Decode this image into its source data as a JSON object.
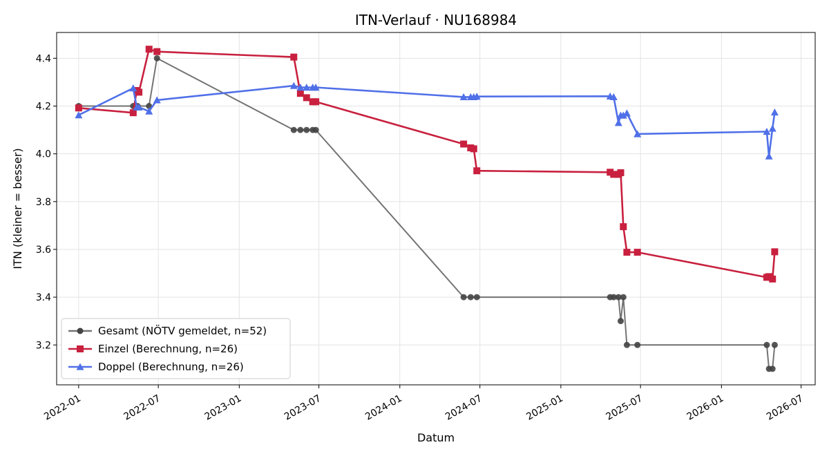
{
  "chart_data": {
    "type": "line",
    "title": "ITN-Verlauf · NU168984",
    "xlabel": "Datum",
    "ylabel": "ITN  (kleiner = besser)",
    "xlim": [
      "2021-11-12",
      "2026-08-02"
    ],
    "ylim": [
      3.033,
      4.508
    ],
    "grid": true,
    "legend_position": "lower-left",
    "x_ticks": [
      "2022-01",
      "2022-07",
      "2023-01",
      "2023-07",
      "2024-01",
      "2024-07",
      "2025-01",
      "2025-07",
      "2026-01",
      "2026-07"
    ],
    "y_ticks": [
      3.2,
      3.4,
      3.6,
      3.8,
      4.0,
      4.2,
      4.4
    ],
    "series": [
      {
        "name": "Gesamt (NÖTV gemeldet, n=52)",
        "color": "#444444",
        "marker": "circle",
        "points": [
          [
            "2022-01-01",
            4.2
          ],
          [
            "2022-05-05",
            4.2
          ],
          [
            "2022-05-15",
            4.2
          ],
          [
            "2022-06-10",
            4.2
          ],
          [
            "2022-06-28",
            4.4
          ],
          [
            "2023-05-05",
            4.1
          ],
          [
            "2023-05-20",
            4.1
          ],
          [
            "2023-06-03",
            4.1
          ],
          [
            "2023-06-17",
            4.1
          ],
          [
            "2023-06-24",
            4.1
          ],
          [
            "2024-05-25",
            3.4
          ],
          [
            "2024-06-10",
            3.4
          ],
          [
            "2024-06-24",
            3.4
          ],
          [
            "2025-04-23",
            3.4
          ],
          [
            "2025-05-01",
            3.4
          ],
          [
            "2025-05-12",
            3.4
          ],
          [
            "2025-05-17",
            3.3
          ],
          [
            "2025-05-23",
            3.4
          ],
          [
            "2025-05-31",
            3.2
          ],
          [
            "2025-06-24",
            3.2
          ],
          [
            "2026-04-14",
            3.2
          ],
          [
            "2026-04-19",
            3.1
          ],
          [
            "2026-04-27",
            3.1
          ],
          [
            "2026-05-02",
            3.2
          ]
        ]
      },
      {
        "name": "Einzel (Berechnung, n=26)",
        "color": "#c8203e",
        "marker": "square",
        "points": [
          [
            "2022-01-01",
            4.192
          ],
          [
            "2022-05-05",
            4.172
          ],
          [
            "2022-05-13",
            4.265
          ],
          [
            "2022-05-18",
            4.258
          ],
          [
            "2022-06-10",
            4.438
          ],
          [
            "2022-06-28",
            4.428
          ],
          [
            "2023-05-05",
            4.405
          ],
          [
            "2023-05-20",
            4.253
          ],
          [
            "2023-06-03",
            4.235
          ],
          [
            "2023-06-17",
            4.218
          ],
          [
            "2023-06-24",
            4.218
          ],
          [
            "2024-05-25",
            4.041
          ],
          [
            "2024-06-10",
            4.025
          ],
          [
            "2024-06-17",
            4.021
          ],
          [
            "2024-06-24",
            3.929
          ],
          [
            "2025-04-23",
            3.923
          ],
          [
            "2025-05-01",
            3.914
          ],
          [
            "2025-05-12",
            3.914
          ],
          [
            "2025-05-17",
            3.921
          ],
          [
            "2025-05-23",
            3.695
          ],
          [
            "2025-05-31",
            3.588
          ],
          [
            "2025-06-24",
            3.588
          ],
          [
            "2026-04-14",
            3.483
          ],
          [
            "2026-04-19",
            3.486
          ],
          [
            "2026-04-27",
            3.476
          ],
          [
            "2026-05-02",
            3.59
          ]
        ]
      },
      {
        "name": "Doppel (Berechnung, n=26)",
        "color": "#5070e8",
        "marker": "triangle",
        "points": [
          [
            "2022-01-01",
            4.162
          ],
          [
            "2022-05-05",
            4.275
          ],
          [
            "2022-05-13",
            4.195
          ],
          [
            "2022-05-18",
            4.195
          ],
          [
            "2022-06-10",
            4.178
          ],
          [
            "2022-06-28",
            4.225
          ],
          [
            "2023-05-05",
            4.285
          ],
          [
            "2023-05-20",
            4.278
          ],
          [
            "2023-06-03",
            4.278
          ],
          [
            "2023-06-17",
            4.278
          ],
          [
            "2023-06-24",
            4.278
          ],
          [
            "2024-05-25",
            4.238
          ],
          [
            "2024-06-10",
            4.238
          ],
          [
            "2024-06-17",
            4.238
          ],
          [
            "2024-06-24",
            4.24
          ],
          [
            "2025-04-23",
            4.241
          ],
          [
            "2025-05-01",
            4.238
          ],
          [
            "2025-05-12",
            4.13
          ],
          [
            "2025-05-17",
            4.161
          ],
          [
            "2025-05-23",
            4.161
          ],
          [
            "2025-05-31",
            4.17
          ],
          [
            "2025-06-24",
            4.083
          ],
          [
            "2026-04-14",
            4.093
          ],
          [
            "2026-04-19",
            3.99
          ],
          [
            "2026-04-27",
            4.106
          ],
          [
            "2026-05-02",
            4.174
          ]
        ]
      }
    ]
  }
}
